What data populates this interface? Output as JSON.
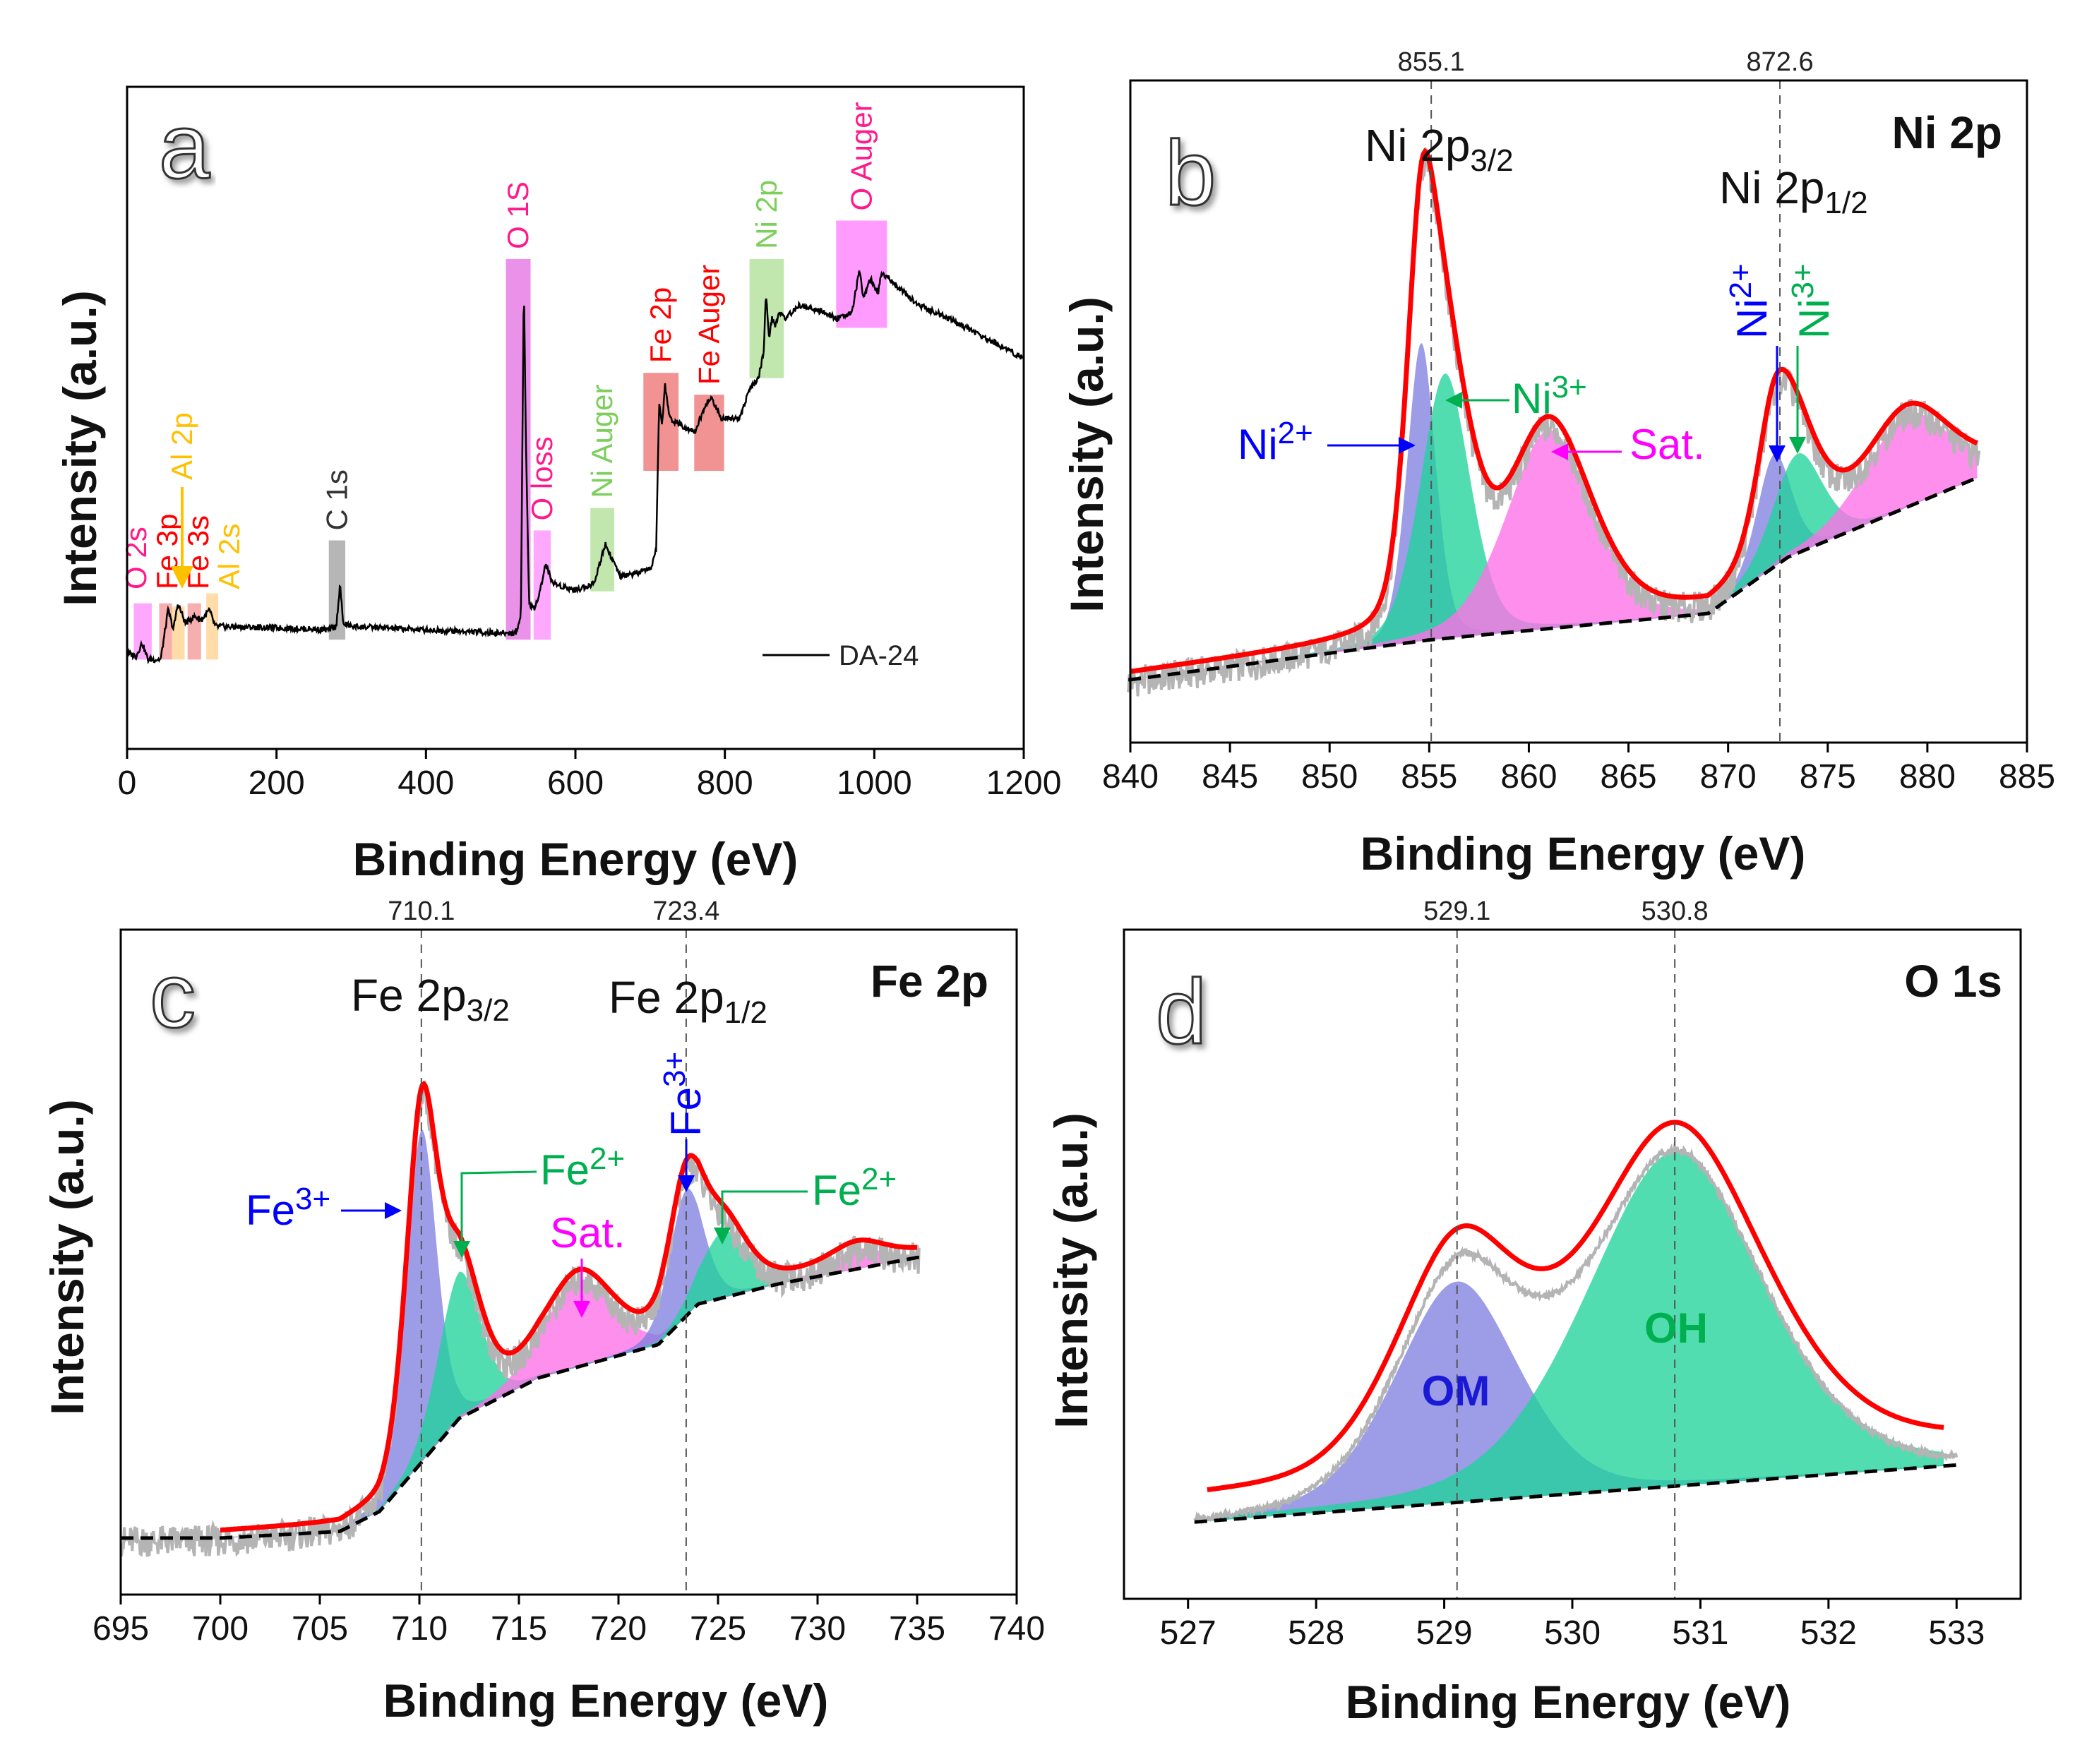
{
  "chart_data": [
    {
      "panel": "a",
      "type": "line",
      "title": "",
      "xlabel": "Binding Energy (eV)",
      "ylabel": "Intensity (a.u.)",
      "xlim": [
        0,
        1200
      ],
      "ylim": [
        0,
        100
      ],
      "xticks": [
        0,
        200,
        400,
        600,
        800,
        1000,
        1200
      ],
      "legend": {
        "label": "DA-24",
        "placement": "bottom-right",
        "color": "#000000"
      },
      "series": [
        {
          "name": "DA-24",
          "color": "#000000",
          "points": [
            [
              0,
              14.5
            ],
            [
              12,
              14
            ],
            [
              20,
              16
            ],
            [
              28,
              13.5
            ],
            [
              45,
              13.5
            ],
            [
              55,
              21
            ],
            [
              62,
              18
            ],
            [
              68,
              22
            ],
            [
              78,
              19
            ],
            [
              90,
              20
            ],
            [
              100,
              19.5
            ],
            [
              110,
              21
            ],
            [
              118,
              18.5
            ],
            [
              200,
              18.3
            ],
            [
              270,
              18
            ],
            [
              280,
              18.5
            ],
            [
              285,
              25
            ],
            [
              289,
              19
            ],
            [
              300,
              18.5
            ],
            [
              400,
              18
            ],
            [
              500,
              17.5
            ],
            [
              520,
              17.5
            ],
            [
              527,
              20
            ],
            [
              531,
              71
            ],
            [
              534,
              45
            ],
            [
              538,
              22
            ],
            [
              545,
              21
            ],
            [
              555,
              25
            ],
            [
              560,
              28
            ],
            [
              570,
              25
            ],
            [
              600,
              24
            ],
            [
              625,
              25
            ],
            [
              640,
              31
            ],
            [
              648,
              29
            ],
            [
              660,
              26
            ],
            [
              700,
              27
            ],
            [
              708,
              30
            ],
            [
              712,
              52
            ],
            [
              716,
              49
            ],
            [
              720,
              55
            ],
            [
              726,
              50
            ],
            [
              740,
              49
            ],
            [
              760,
              48
            ],
            [
              775,
              52
            ],
            [
              782,
              53
            ],
            [
              795,
              50
            ],
            [
              820,
              50
            ],
            [
              832,
              54
            ],
            [
              845,
              56
            ],
            [
              852,
              60
            ],
            [
              855,
              69
            ],
            [
              859,
              62
            ],
            [
              863,
              65
            ],
            [
              868,
              64
            ],
            [
              873,
              66
            ],
            [
              880,
              65
            ],
            [
              900,
              67
            ],
            [
              930,
              66
            ],
            [
              950,
              65
            ],
            [
              970,
              66
            ],
            [
              980,
              72
            ],
            [
              986,
              68
            ],
            [
              995,
              71
            ],
            [
              1005,
              69
            ],
            [
              1010,
              72
            ],
            [
              1030,
              70
            ],
            [
              1060,
              67
            ],
            [
              1100,
              65
            ],
            [
              1150,
              62
            ],
            [
              1200,
              59
            ]
          ]
        }
      ],
      "regions": [
        {
          "label": "O 2s",
          "x": [
            9,
            33
          ],
          "y": [
            13.5,
            22
          ],
          "color": "#ff99ff",
          "label_color": "#ff1a8c"
        },
        {
          "label": "Fe 3p",
          "x": [
            43,
            60
          ],
          "y": [
            13.5,
            22
          ],
          "color": "#f5a0a0",
          "label_color": "#ff0000"
        },
        {
          "label": "Al 2p",
          "x": [
            60,
            77
          ],
          "y": [
            13.5,
            21.5
          ],
          "color": "#ffd699",
          "label_color": "#ffc000"
        },
        {
          "label": "Fe 3s",
          "x": [
            81,
            99
          ],
          "y": [
            13.5,
            22
          ],
          "color": "#f5a0a0",
          "label_color": "#ff0000"
        },
        {
          "label": "Al 2s",
          "x": [
            106,
            122
          ],
          "y": [
            13.5,
            23.5
          ],
          "color": "#ffd699",
          "label_color": "#ffc000"
        },
        {
          "label": "C 1s",
          "x": [
            270,
            292
          ],
          "y": [
            16.5,
            31.5
          ],
          "color": "#a9a9a9",
          "label_color": "#333333"
        },
        {
          "label": "O 1S",
          "x": [
            507,
            540
          ],
          "y": [
            16.5,
            74
          ],
          "color": "#e67ee6",
          "label_color": "#ff1a8c"
        },
        {
          "label": "O loss",
          "x": [
            544,
            567
          ],
          "y": [
            16.5,
            33
          ],
          "color": "#ff99ff",
          "label_color": "#ff1a8c"
        },
        {
          "label": "Ni Auger",
          "x": [
            620,
            652
          ],
          "y": [
            23.8,
            36.4
          ],
          "color": "#b7e3a0",
          "label_color": "#7ccf5a"
        },
        {
          "label": "Fe 2p",
          "x": [
            691,
            738
          ],
          "y": [
            42,
            56.8
          ],
          "color": "#f08080",
          "label_color": "#ff0000"
        },
        {
          "label": "Fe Auger",
          "x": [
            759,
            799
          ],
          "y": [
            42,
            53.5
          ],
          "color": "#f08080",
          "label_color": "#ff0000"
        },
        {
          "label": "Ni 2p",
          "x": [
            833,
            879
          ],
          "y": [
            56,
            74
          ],
          "color": "#b7e3a0",
          "label_color": "#7ccf5a"
        },
        {
          "label": "O Auger",
          "x": [
            949,
            1017
          ],
          "y": [
            63.6,
            79.8
          ],
          "color": "#ff88ff",
          "label_color": "#ff1a8c"
        }
      ]
    },
    {
      "panel": "b",
      "type": "line",
      "title": "Ni 2p",
      "xlabel": "Binding Energy (eV)",
      "ylabel": "Intensity (a.u.)",
      "xlim": [
        840,
        885
      ],
      "ylim": [
        0,
        100
      ],
      "xticks": [
        840,
        845,
        850,
        855,
        860,
        865,
        870,
        875,
        880,
        885
      ],
      "fit_range": [
        840,
        882.5
      ],
      "reference_lines": [
        "855.1",
        "872.6"
      ],
      "background": [
        [
          840,
          9.5
        ],
        [
          855,
          15.5
        ],
        [
          869,
          19.5
        ],
        [
          873,
          28
        ],
        [
          882.5,
          40
        ]
      ],
      "components": [
        {
          "label": "Ni2+",
          "center": 854.6,
          "height": 45,
          "width": 0.75,
          "color": "#8080e0"
        },
        {
          "label": "Ni3+",
          "center": 855.8,
          "height": 40,
          "width": 1.3,
          "color": "#20d39a"
        },
        {
          "label": "Sat.",
          "center": 861.0,
          "height": 30,
          "width": 2.2,
          "color": "#ff70e8"
        },
        {
          "label": "Ni2+",
          "center": 872.3,
          "height": 17,
          "width": 0.9,
          "color": "#8080e0"
        },
        {
          "label": "Ni3+",
          "center": 873.5,
          "height": 15,
          "width": 1.3,
          "color": "#20d39a"
        },
        {
          "label": "Sat.",
          "center": 879.0,
          "height": 14,
          "width": 2.2,
          "color": "#ff70e8"
        }
      ],
      "annotations": {
        "p32": {
          "base": "Ni 2p",
          "sub": "3/2"
        },
        "p12": {
          "base": "Ni 2p",
          "sub": "1/2"
        },
        "ni2": {
          "base": "Ni",
          "sup": "2+",
          "color": "#0000ff"
        },
        "ni3": {
          "base": "Ni",
          "sup": "3+",
          "color": "#00b050"
        },
        "sat": {
          "text": "Sat.",
          "color": "#ff00ff"
        },
        "ni2v": {
          "base": "Ni",
          "sup": "2+",
          "color": "#0000ff"
        },
        "ni3v": {
          "base": "Ni",
          "sup": "3+",
          "color": "#00b050"
        }
      }
    },
    {
      "panel": "c",
      "type": "line",
      "title": "Fe 2p",
      "xlabel": "Binding Energy (eV)",
      "ylabel": "Intensity (a.u.)",
      "xlim": [
        695,
        740
      ],
      "ylim": [
        0,
        100
      ],
      "xticks": [
        695,
        700,
        705,
        710,
        715,
        720,
        725,
        730,
        735,
        740
      ],
      "fit_range": [
        700,
        735
      ],
      "reference_lines": [
        "710.1",
        "723.4"
      ],
      "background": [
        [
          695,
          8.5
        ],
        [
          700,
          8.5
        ],
        [
          706,
          9.5
        ],
        [
          708,
          12.5
        ],
        [
          710,
          19.5
        ],
        [
          712,
          26.5
        ],
        [
          716,
          32.6
        ],
        [
          722,
          37.6
        ],
        [
          724,
          43.7
        ],
        [
          728,
          46.7
        ],
        [
          735,
          50.7
        ]
      ],
      "components": [
        {
          "label": "Fe3+",
          "center": 710.1,
          "height": 50,
          "width": 0.8,
          "color": "#8080e0"
        },
        {
          "label": "Fe2+",
          "center": 712.0,
          "height": 22,
          "width": 1.1,
          "color": "#20d39a"
        },
        {
          "label": "Sat.",
          "center": 718.0,
          "height": 13,
          "width": 1.8,
          "color": "#ff70e8"
        },
        {
          "label": "Fe3+",
          "center": 723.4,
          "height": 19,
          "width": 0.9,
          "color": "#8080e0"
        },
        {
          "label": "Fe2+",
          "center": 725.3,
          "height": 10,
          "width": 1.2,
          "color": "#20d39a"
        },
        {
          "label": "Sat.",
          "center": 732.0,
          "height": 3,
          "width": 1.4,
          "color": "#ff70e8"
        }
      ],
      "annotations": {
        "p32": {
          "base": "Fe 2p",
          "sub": "3/2"
        },
        "p12": {
          "base": "Fe 2p",
          "sub": "1/2"
        },
        "fe3": {
          "base": "Fe",
          "sup": "3+",
          "color": "#0000ff"
        },
        "fe2": {
          "base": "Fe",
          "sup": "2+",
          "color": "#00b050"
        },
        "sat": {
          "text": "Sat.",
          "color": "#ff00ff"
        },
        "fe3v": {
          "base": "Fe",
          "sup": "3+",
          "color": "#0000ff"
        },
        "fe2b": {
          "base": "Fe",
          "sup": "2+",
          "color": "#00b050"
        }
      }
    },
    {
      "panel": "d",
      "type": "line",
      "title": "O 1s",
      "xlabel": "Binding Energy (eV)",
      "ylabel": "Intensity (a.u.)",
      "xlim": [
        526.5,
        533.5
      ],
      "ylim": [
        0,
        100
      ],
      "xticks": [
        527,
        528,
        529,
        530,
        531,
        532,
        533
      ],
      "fit_range": [
        527.15,
        532.9
      ],
      "reference_lines": [
        "529.1",
        "530.8"
      ],
      "background": [
        [
          527,
          11.4
        ],
        [
          533,
          20
        ]
      ],
      "components": [
        {
          "label": "OM",
          "center": 529.1,
          "height": 33,
          "width": 0.5,
          "color": "#8080e0"
        },
        {
          "label": "OH",
          "center": 530.8,
          "height": 50,
          "width": 0.72,
          "color": "#20d39a"
        }
      ],
      "annotations": {
        "om": {
          "text": "OM",
          "color": "#1a1ad6"
        },
        "oh": {
          "text": "OH",
          "color": "#00b050"
        }
      }
    }
  ],
  "colors": {
    "envelope": "#ff0000",
    "raw": "#b4b4b4",
    "background": "#000000"
  }
}
